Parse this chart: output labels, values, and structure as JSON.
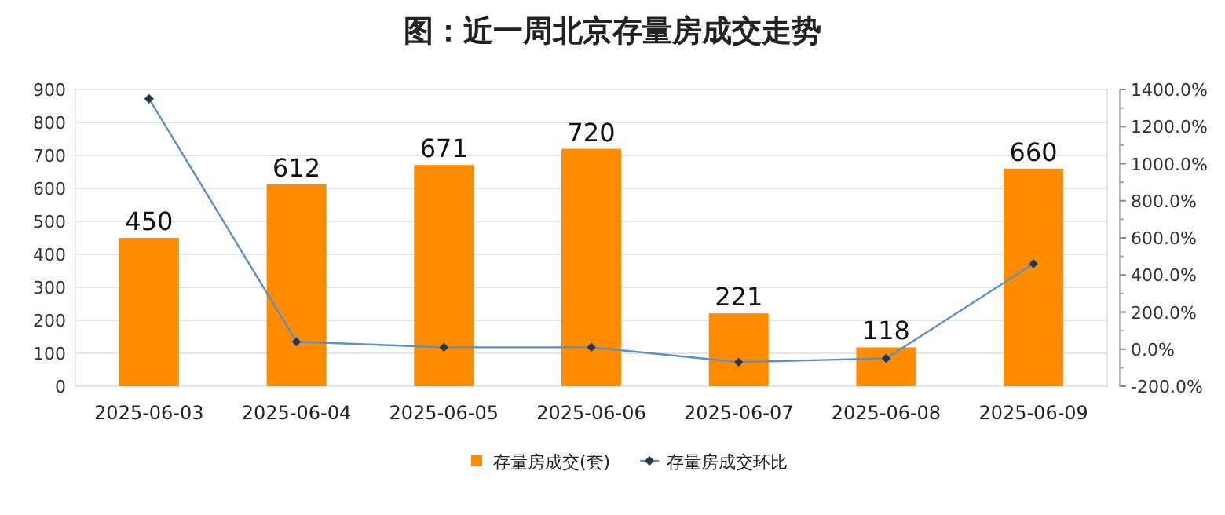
{
  "chart_data": {
    "type": "bar",
    "title": "图：近一周北京存量房成交走势",
    "categories": [
      "2025-06-03",
      "2025-06-04",
      "2025-06-05",
      "2025-06-06",
      "2025-06-07",
      "2025-06-08",
      "2025-06-09"
    ],
    "series": [
      {
        "name": "存量房成交(套)",
        "color": "#ff8c00",
        "values": [
          450,
          612,
          671,
          720,
          221,
          118,
          660
        ],
        "value_labels": [
          "450",
          "612",
          "671",
          "720",
          "221",
          "118",
          "660"
        ]
      },
      {
        "name": "存量房成交环比",
        "type": "line",
        "axis": "y2",
        "color": "#5b8fc9",
        "marker": "diamond",
        "values": [
          1350,
          40,
          10,
          10,
          -70,
          -50,
          460
        ]
      }
    ],
    "ylim": [
      0,
      900
    ],
    "yticks": [
      0,
      100,
      200,
      300,
      400,
      500,
      600,
      700,
      800,
      900
    ],
    "y2lim": [
      -200,
      1400
    ],
    "y2ticks": [
      {
        "value": -200,
        "label": "-200.0%"
      },
      {
        "value": 0,
        "label": "0.0%"
      },
      {
        "value": 200,
        "label": "200.0%"
      },
      {
        "value": 400,
        "label": "400.0%"
      },
      {
        "value": 600,
        "label": "600.0%"
      },
      {
        "value": 800,
        "label": "800.0%"
      },
      {
        "value": 1000,
        "label": "1000.0%"
      },
      {
        "value": 1200,
        "label": "1200.0%"
      },
      {
        "value": 1400,
        "label": "1400.0%"
      }
    ],
    "grid": "y",
    "legend": "bottom"
  }
}
